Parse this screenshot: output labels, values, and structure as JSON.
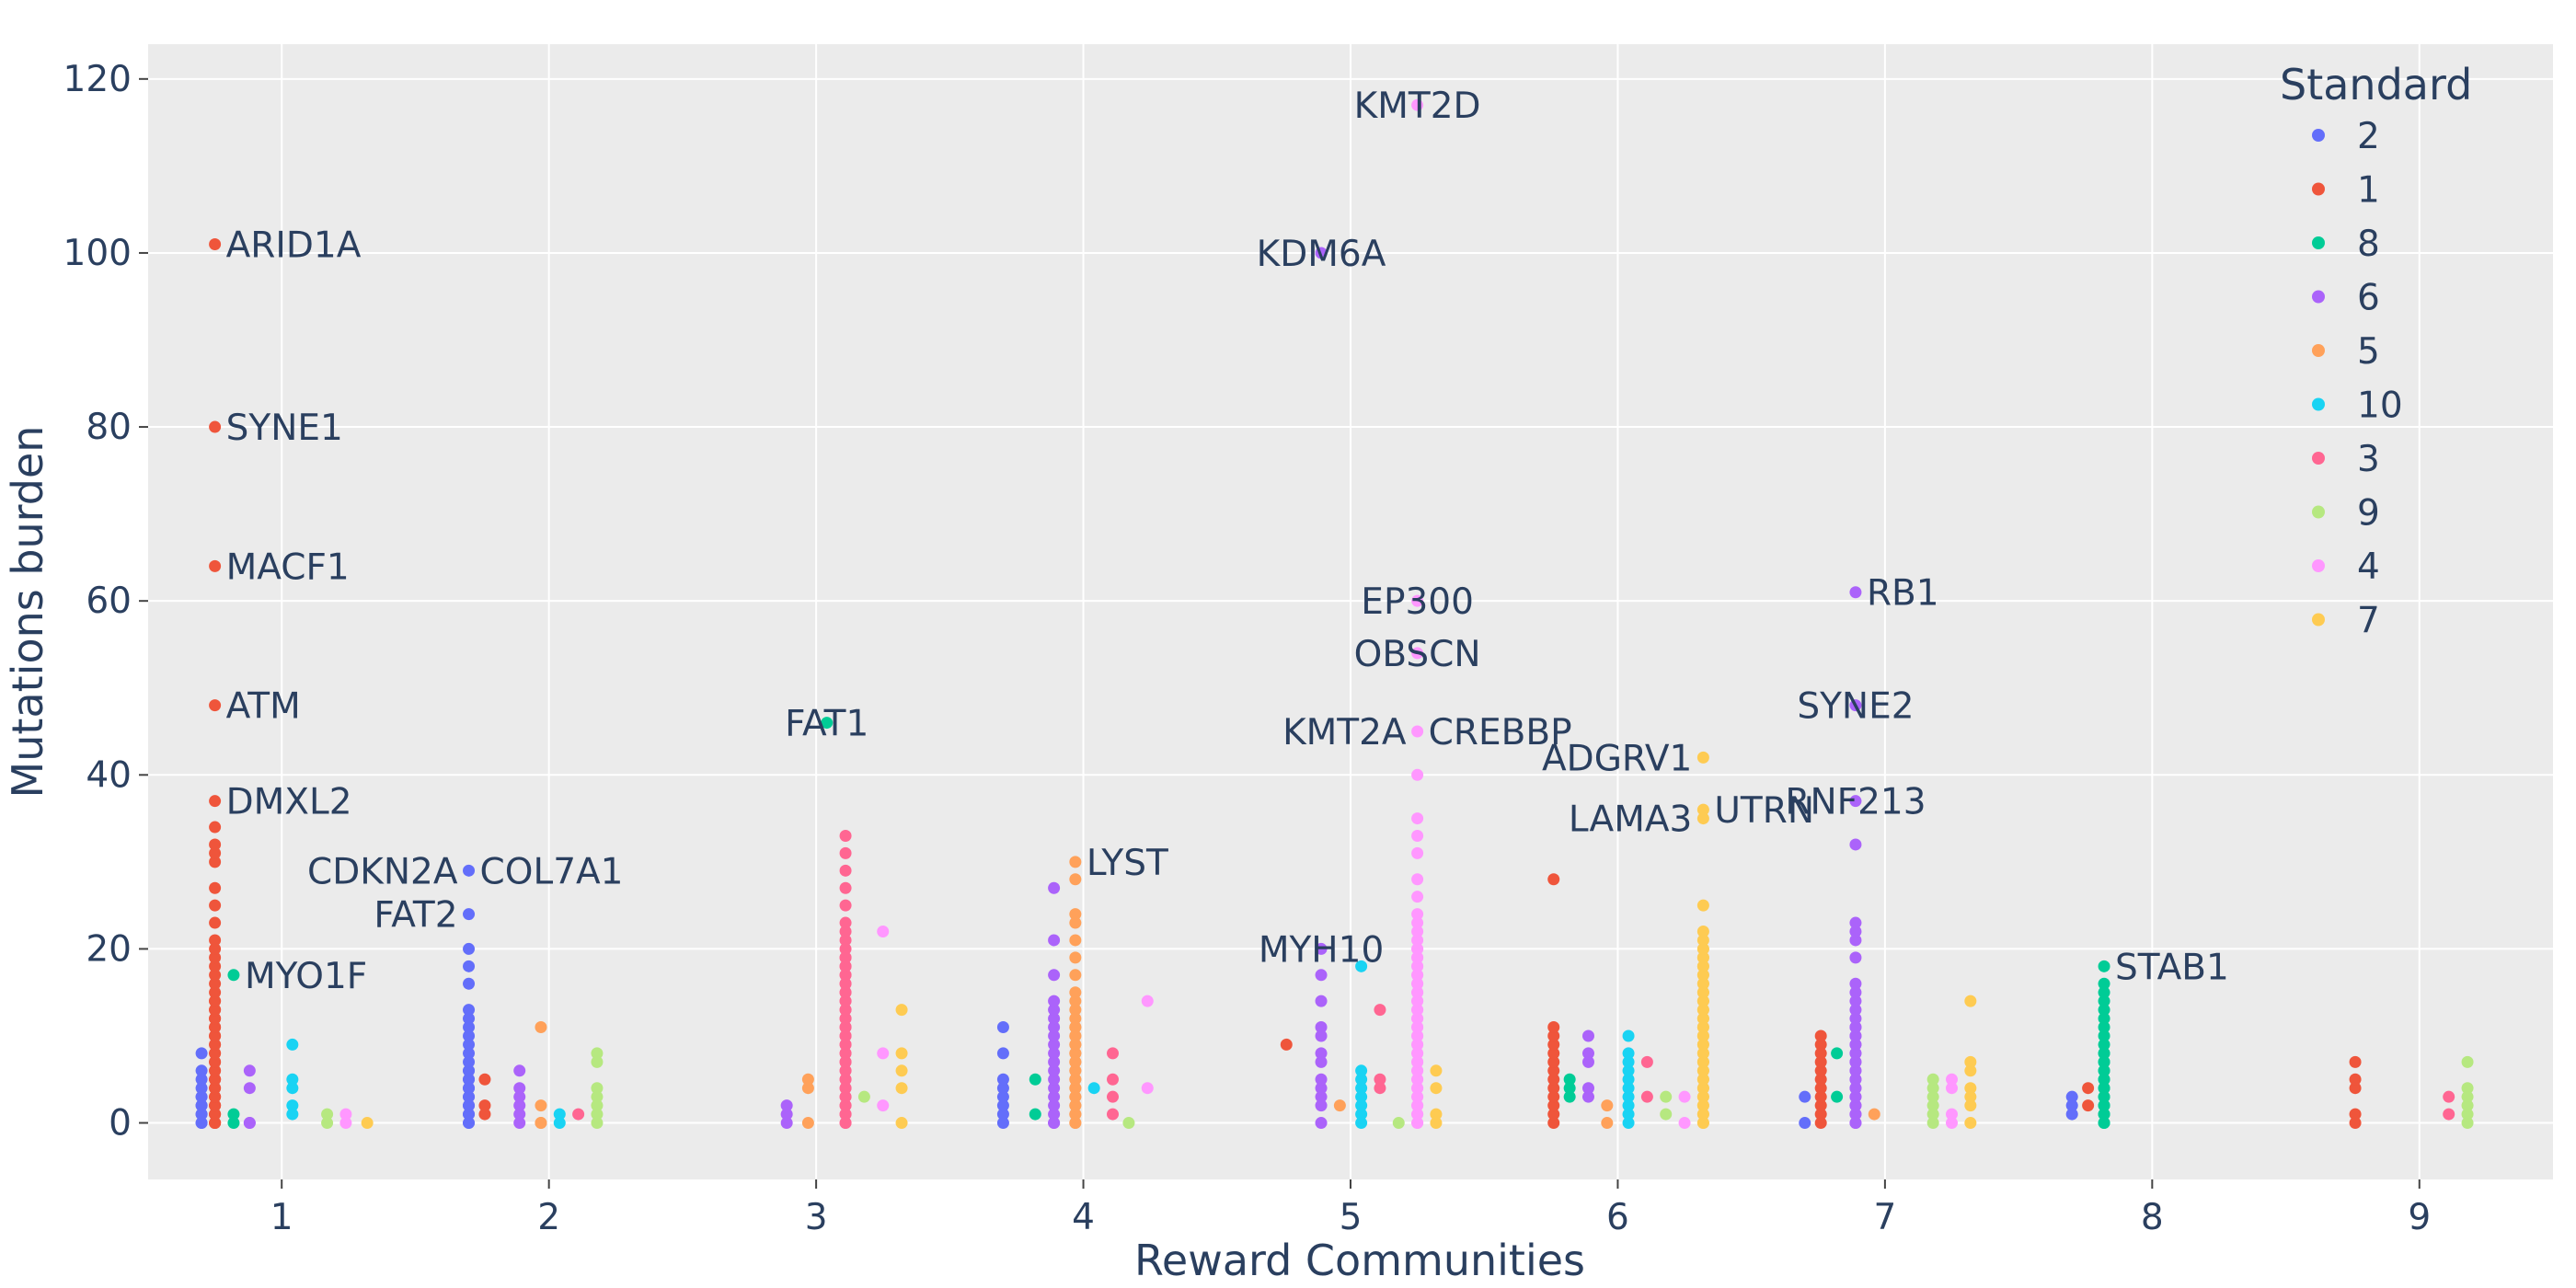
{
  "chart_data": {
    "type": "scatter",
    "xlabel": "Reward Communities",
    "ylabel": "Mutations burden",
    "xlim": [
      0.5,
      9.5
    ],
    "ylim": [
      -6.5,
      124
    ],
    "x_ticks": [
      1,
      2,
      3,
      4,
      5,
      6,
      7,
      8,
      9
    ],
    "y_ticks": [
      0,
      20,
      40,
      60,
      80,
      100,
      120
    ],
    "grid": true,
    "background": "#ebebeb",
    "legend": {
      "title": "Standard",
      "position": "top-right",
      "entries": [
        {
          "name": "2",
          "color": "#636efa"
        },
        {
          "name": "1",
          "color": "#ef553b"
        },
        {
          "name": "8",
          "color": "#00cc96"
        },
        {
          "name": "6",
          "color": "#ab63fa"
        },
        {
          "name": "5",
          "color": "#ffa15a"
        },
        {
          "name": "10",
          "color": "#19d3f3"
        },
        {
          "name": "3",
          "color": "#ff6692"
        },
        {
          "name": "9",
          "color": "#b6e880"
        },
        {
          "name": "4",
          "color": "#ff97ff"
        },
        {
          "name": "7",
          "color": "#fecb52"
        }
      ]
    },
    "columns": [
      {
        "community": 1,
        "standard": "2",
        "x": 0.7,
        "values": [
          0,
          0,
          1,
          1,
          2,
          2,
          3,
          3,
          4,
          5,
          6,
          8
        ]
      },
      {
        "community": 1,
        "standard": "1",
        "x": 0.75,
        "values": [
          0,
          0,
          0,
          0,
          1,
          1,
          1,
          2,
          2,
          2,
          3,
          3,
          3,
          4,
          4,
          5,
          5,
          5,
          6,
          6,
          7,
          7,
          8,
          8,
          9,
          9,
          10,
          10,
          11,
          11,
          12,
          12,
          13,
          13,
          14,
          14,
          15,
          16,
          17,
          18,
          19,
          20,
          21,
          23,
          25,
          27,
          30,
          31,
          32,
          34,
          37,
          48,
          64,
          80,
          101
        ]
      },
      {
        "community": 1,
        "standard": "8",
        "x": 0.82,
        "values": [
          0,
          1,
          17
        ]
      },
      {
        "community": 1,
        "standard": "6",
        "x": 0.88,
        "values": [
          0,
          0,
          4,
          6
        ]
      },
      {
        "community": 1,
        "standard": "10",
        "x": 1.04,
        "values": [
          1,
          2,
          4,
          5,
          9
        ]
      },
      {
        "community": 1,
        "standard": "9",
        "x": 1.17,
        "values": [
          0,
          1
        ]
      },
      {
        "community": 1,
        "standard": "4",
        "x": 1.24,
        "values": [
          0,
          1
        ]
      },
      {
        "community": 1,
        "standard": "7",
        "x": 1.32,
        "values": [
          0
        ]
      },
      {
        "community": 2,
        "standard": "2",
        "x": 1.7,
        "values": [
          0,
          0,
          1,
          1,
          2,
          2,
          3,
          3,
          4,
          4,
          5,
          5,
          6,
          6,
          7,
          8,
          9,
          10,
          11,
          12,
          13,
          16,
          18,
          20,
          24,
          29
        ]
      },
      {
        "community": 2,
        "standard": "1",
        "x": 1.76,
        "values": [
          1,
          2,
          5
        ]
      },
      {
        "community": 2,
        "standard": "6",
        "x": 1.89,
        "values": [
          0,
          1,
          2,
          3,
          4,
          6
        ]
      },
      {
        "community": 2,
        "standard": "5",
        "x": 1.97,
        "values": [
          0,
          0,
          2,
          11
        ]
      },
      {
        "community": 2,
        "standard": "10",
        "x": 2.04,
        "values": [
          0,
          1
        ]
      },
      {
        "community": 2,
        "standard": "3",
        "x": 2.11,
        "values": [
          1
        ]
      },
      {
        "community": 2,
        "standard": "9",
        "x": 2.18,
        "values": [
          0,
          1,
          2,
          3,
          4,
          7,
          8
        ]
      },
      {
        "community": 3,
        "standard": "6",
        "x": 2.89,
        "values": [
          0,
          1,
          2
        ]
      },
      {
        "community": 3,
        "standard": "5",
        "x": 2.97,
        "values": [
          0,
          4,
          5
        ]
      },
      {
        "community": 3,
        "standard": "8",
        "x": 3.04,
        "values": [
          46
        ]
      },
      {
        "community": 3,
        "standard": "3",
        "x": 3.11,
        "values": [
          0,
          0,
          1,
          1,
          2,
          2,
          3,
          3,
          4,
          4,
          5,
          5,
          6,
          6,
          7,
          7,
          8,
          8,
          9,
          9,
          10,
          10,
          11,
          11,
          12,
          12,
          13,
          13,
          14,
          14,
          15,
          15,
          16,
          16,
          17,
          17,
          18,
          18,
          19,
          19,
          20,
          21,
          22,
          23,
          25,
          27,
          29,
          31,
          33
        ]
      },
      {
        "community": 3,
        "standard": "9",
        "x": 3.18,
        "values": [
          3
        ]
      },
      {
        "community": 3,
        "standard": "4",
        "x": 3.25,
        "values": [
          2,
          8,
          22
        ]
      },
      {
        "community": 3,
        "standard": "7",
        "x": 3.32,
        "values": [
          0,
          4,
          6,
          8,
          13
        ]
      },
      {
        "community": 4,
        "standard": "2",
        "x": 3.7,
        "values": [
          0,
          1,
          2,
          3,
          4,
          5,
          8,
          11
        ]
      },
      {
        "community": 4,
        "standard": "8",
        "x": 3.82,
        "values": [
          1,
          5
        ]
      },
      {
        "community": 4,
        "standard": "6",
        "x": 3.89,
        "values": [
          0,
          0,
          1,
          2,
          3,
          4,
          5,
          6,
          7,
          8,
          9,
          10,
          11,
          12,
          13,
          14,
          17,
          21,
          27
        ]
      },
      {
        "community": 4,
        "standard": "5",
        "x": 3.97,
        "values": [
          0,
          0,
          1,
          1,
          2,
          2,
          3,
          3,
          4,
          4,
          5,
          5,
          6,
          6,
          7,
          7,
          8,
          8,
          9,
          9,
          10,
          10,
          11,
          11,
          12,
          13,
          14,
          15,
          17,
          19,
          21,
          23,
          24,
          28,
          30
        ]
      },
      {
        "community": 4,
        "standard": "10",
        "x": 4.04,
        "values": [
          4
        ]
      },
      {
        "community": 4,
        "standard": "3",
        "x": 4.11,
        "values": [
          1,
          3,
          5,
          8
        ]
      },
      {
        "community": 4,
        "standard": "9",
        "x": 4.17,
        "values": [
          0
        ]
      },
      {
        "community": 4,
        "standard": "4",
        "x": 4.24,
        "values": [
          4,
          14
        ]
      },
      {
        "community": 5,
        "standard": "1",
        "x": 4.76,
        "values": [
          9
        ]
      },
      {
        "community": 5,
        "standard": "6",
        "x": 4.89,
        "values": [
          0,
          2,
          3,
          4,
          5,
          7,
          8,
          10,
          11,
          14,
          17,
          20,
          100
        ]
      },
      {
        "community": 5,
        "standard": "5",
        "x": 4.96,
        "values": [
          2
        ]
      },
      {
        "community": 5,
        "standard": "10",
        "x": 5.04,
        "values": [
          0,
          1,
          2,
          3,
          4,
          5,
          6,
          18
        ]
      },
      {
        "community": 5,
        "standard": "3",
        "x": 5.11,
        "values": [
          4,
          5,
          13
        ]
      },
      {
        "community": 5,
        "standard": "9",
        "x": 5.18,
        "values": [
          0
        ]
      },
      {
        "community": 5,
        "standard": "4",
        "x": 5.25,
        "values": [
          0,
          0,
          1,
          1,
          2,
          2,
          3,
          3,
          4,
          4,
          5,
          5,
          6,
          6,
          7,
          7,
          8,
          8,
          9,
          9,
          10,
          10,
          11,
          11,
          12,
          12,
          13,
          13,
          14,
          14,
          15,
          15,
          16,
          16,
          17,
          17,
          18,
          18,
          19,
          19,
          20,
          20,
          21,
          22,
          23,
          24,
          26,
          28,
          31,
          33,
          35,
          40,
          45,
          54,
          60,
          117
        ]
      },
      {
        "community": 5,
        "standard": "7",
        "x": 5.32,
        "values": [
          0,
          1,
          4,
          6
        ]
      },
      {
        "community": 6,
        "standard": "1",
        "x": 5.76,
        "values": [
          0,
          1,
          2,
          3,
          4,
          5,
          6,
          7,
          8,
          9,
          10,
          11,
          28
        ]
      },
      {
        "community": 6,
        "standard": "8",
        "x": 5.82,
        "values": [
          3,
          4,
          5
        ]
      },
      {
        "community": 6,
        "standard": "6",
        "x": 5.89,
        "values": [
          3,
          4,
          7,
          8,
          10
        ]
      },
      {
        "community": 6,
        "standard": "5",
        "x": 5.96,
        "values": [
          0,
          2
        ]
      },
      {
        "community": 6,
        "standard": "10",
        "x": 6.04,
        "values": [
          0,
          1,
          2,
          3,
          4,
          5,
          6,
          7,
          8,
          10
        ]
      },
      {
        "community": 6,
        "standard": "3",
        "x": 6.11,
        "values": [
          3,
          7
        ]
      },
      {
        "community": 6,
        "standard": "9",
        "x": 6.18,
        "values": [
          1,
          3
        ]
      },
      {
        "community": 6,
        "standard": "4",
        "x": 6.25,
        "values": [
          0,
          3
        ]
      },
      {
        "community": 6,
        "standard": "7",
        "x": 6.32,
        "values": [
          0,
          0,
          1,
          1,
          2,
          2,
          3,
          3,
          4,
          4,
          5,
          5,
          6,
          6,
          7,
          7,
          8,
          8,
          9,
          9,
          10,
          10,
          11,
          11,
          12,
          12,
          13,
          13,
          14,
          14,
          15,
          15,
          16,
          16,
          17,
          17,
          18,
          18,
          19,
          19,
          20,
          20,
          21,
          22,
          25,
          35,
          36,
          42
        ]
      },
      {
        "community": 7,
        "standard": "2",
        "x": 6.7,
        "values": [
          0,
          3
        ]
      },
      {
        "community": 7,
        "standard": "1",
        "x": 6.76,
        "values": [
          0,
          1,
          2,
          3,
          4,
          5,
          6,
          7,
          8,
          9,
          10
        ]
      },
      {
        "community": 7,
        "standard": "8",
        "x": 6.82,
        "values": [
          3,
          8
        ]
      },
      {
        "community": 7,
        "standard": "6",
        "x": 6.89,
        "values": [
          0,
          0,
          1,
          1,
          2,
          2,
          3,
          3,
          4,
          4,
          5,
          5,
          6,
          6,
          7,
          7,
          8,
          8,
          9,
          9,
          10,
          10,
          11,
          11,
          12,
          13,
          14,
          15,
          16,
          19,
          21,
          22,
          23,
          32,
          37,
          48,
          61
        ]
      },
      {
        "community": 7,
        "standard": "5",
        "x": 6.96,
        "values": [
          1
        ]
      },
      {
        "community": 7,
        "standard": "9",
        "x": 7.18,
        "values": [
          0,
          1,
          2,
          3,
          4,
          5
        ]
      },
      {
        "community": 7,
        "standard": "4",
        "x": 7.25,
        "values": [
          0,
          1,
          4,
          5
        ]
      },
      {
        "community": 7,
        "standard": "7",
        "x": 7.32,
        "values": [
          0,
          2,
          3,
          4,
          6,
          7,
          14
        ]
      },
      {
        "community": 8,
        "standard": "2",
        "x": 7.7,
        "values": [
          1,
          2,
          3
        ]
      },
      {
        "community": 8,
        "standard": "1",
        "x": 7.76,
        "values": [
          2,
          4
        ]
      },
      {
        "community": 8,
        "standard": "8",
        "x": 7.82,
        "values": [
          0,
          0,
          1,
          1,
          2,
          2,
          3,
          3,
          4,
          4,
          5,
          5,
          6,
          6,
          7,
          7,
          8,
          8,
          9,
          10,
          11,
          12,
          13,
          14,
          15,
          16,
          18
        ]
      },
      {
        "community": 9,
        "standard": "1",
        "x": 8.76,
        "values": [
          0,
          1,
          4,
          5,
          7
        ]
      },
      {
        "community": 9,
        "standard": "3",
        "x": 9.11,
        "values": [
          1,
          3
        ]
      },
      {
        "community": 9,
        "standard": "9",
        "x": 9.18,
        "values": [
          0,
          1,
          2,
          3,
          4,
          7
        ]
      }
    ],
    "annotations": [
      {
        "text": "ARID1A",
        "x": 0.75,
        "y": 101,
        "side": "right"
      },
      {
        "text": "SYNE1",
        "x": 0.75,
        "y": 80,
        "side": "right"
      },
      {
        "text": "MACF1",
        "x": 0.75,
        "y": 64,
        "side": "right"
      },
      {
        "text": "ATM",
        "x": 0.75,
        "y": 48,
        "side": "right"
      },
      {
        "text": "DMXL2",
        "x": 0.75,
        "y": 37,
        "side": "right"
      },
      {
        "text": "MYO1F",
        "x": 0.82,
        "y": 17,
        "side": "right"
      },
      {
        "text": "CDKN2A",
        "x": 1.7,
        "y": 29,
        "side": "left"
      },
      {
        "text": "COL7A1",
        "x": 1.7,
        "y": 29,
        "side": "right"
      },
      {
        "text": "FAT2",
        "x": 1.7,
        "y": 24,
        "side": "left"
      },
      {
        "text": "FAT1",
        "x": 3.04,
        "y": 46,
        "side": "center"
      },
      {
        "text": "LYST",
        "x": 3.97,
        "y": 30,
        "side": "right"
      },
      {
        "text": "KMT2D",
        "x": 5.25,
        "y": 117,
        "side": "center"
      },
      {
        "text": "KDM6A",
        "x": 4.89,
        "y": 100,
        "side": "center"
      },
      {
        "text": "EP300",
        "x": 5.25,
        "y": 60,
        "side": "center"
      },
      {
        "text": "OBSCN",
        "x": 5.25,
        "y": 54,
        "side": "center"
      },
      {
        "text": "KMT2A",
        "x": 5.25,
        "y": 45,
        "side": "left"
      },
      {
        "text": "CREBBP",
        "x": 5.25,
        "y": 45,
        "side": "right"
      },
      {
        "text": "MYH10",
        "x": 4.89,
        "y": 20,
        "side": "center"
      },
      {
        "text": "ADGRV1",
        "x": 6.32,
        "y": 42,
        "side": "left"
      },
      {
        "text": "LAMA3",
        "x": 6.32,
        "y": 35,
        "side": "left"
      },
      {
        "text": "UTRN",
        "x": 6.32,
        "y": 36,
        "side": "right"
      },
      {
        "text": "RB1",
        "x": 6.89,
        "y": 61,
        "side": "right"
      },
      {
        "text": "SYNE2",
        "x": 6.89,
        "y": 48,
        "side": "center"
      },
      {
        "text": "RNF213",
        "x": 6.89,
        "y": 37,
        "side": "center"
      },
      {
        "text": "STAB1",
        "x": 7.82,
        "y": 18,
        "side": "right"
      }
    ]
  }
}
